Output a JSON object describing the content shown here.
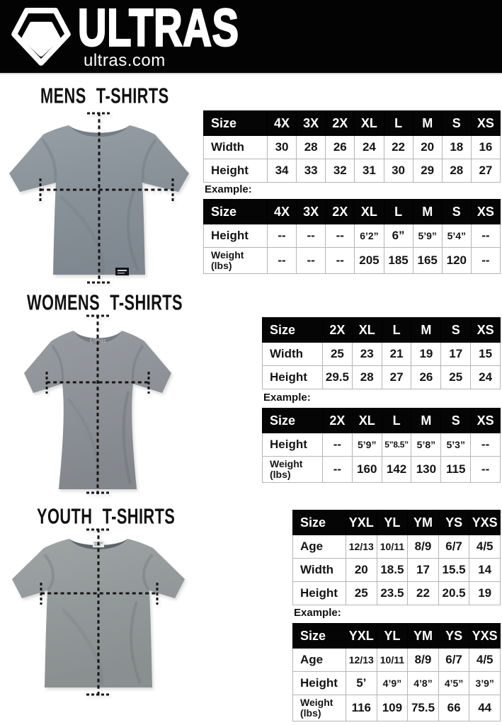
{
  "header": {
    "brand": "ULTRAS",
    "site": "ultras.com"
  },
  "colors": {
    "header_bg": "#030303",
    "table_header_bg": "#050505",
    "table_header_text": "#ffffff",
    "grid_line": "#b5b5b5",
    "shirt_gray_mens": "#8d9598",
    "shirt_gray_womens": "#8e9296",
    "shirt_gray_youth": "#949a9a"
  },
  "icons": {
    "logo": "ultras-pentagon-badge-icon"
  },
  "sections": [
    {
      "id": "mens",
      "title": "MENS T-SHIRTS",
      "example_label": "Example:",
      "size_table": {
        "header": [
          "Size",
          "4X",
          "3X",
          "2X",
          "XL",
          "L",
          "M",
          "S",
          "XS"
        ],
        "rows": [
          {
            "label": "Width",
            "values": [
              "30",
              "28",
              "26",
              "24",
              "22",
              "20",
              "18",
              "16"
            ]
          },
          {
            "label": "Height",
            "values": [
              "34",
              "33",
              "32",
              "31",
              "30",
              "29",
              "28",
              "27"
            ]
          }
        ]
      },
      "example_table": {
        "header": [
          "Size",
          "4X",
          "3X",
          "2X",
          "XL",
          "L",
          "M",
          "S",
          "XS"
        ],
        "rows": [
          {
            "label": "Height",
            "values": [
              "--",
              "--",
              "--",
              "6’2”",
              "6”",
              "5’9”",
              "5’4”",
              "--"
            ]
          },
          {
            "label": "Weight (lbs)",
            "values": [
              "--",
              "--",
              "--",
              "205",
              "185",
              "165",
              "120",
              "--"
            ]
          }
        ]
      }
    },
    {
      "id": "womens",
      "title": "WOMENS T-SHIRTS",
      "example_label": "Example:",
      "size_table": {
        "header": [
          "Size",
          "2X",
          "XL",
          "L",
          "M",
          "S",
          "XS"
        ],
        "rows": [
          {
            "label": "Width",
            "values": [
              "25",
              "23",
              "21",
              "19",
              "17",
              "15"
            ]
          },
          {
            "label": "Height",
            "values": [
              "29.5",
              "28",
              "27",
              "26",
              "25",
              "24"
            ]
          }
        ]
      },
      "example_table": {
        "header": [
          "Size",
          "2X",
          "XL",
          "L",
          "M",
          "S",
          "XS"
        ],
        "rows": [
          {
            "label": "Height",
            "values": [
              "--",
              "5’9”",
              "5”8.5”",
              "5’8”",
              "5’3”",
              "--"
            ]
          },
          {
            "label": "Weight (lbs)",
            "values": [
              "--",
              "160",
              "142",
              "130",
              "115",
              "--"
            ]
          }
        ]
      }
    },
    {
      "id": "youth",
      "title": "YOUTH T-SHIRTS",
      "example_label": "Example:",
      "size_table": {
        "header": [
          "Size",
          "YXL",
          "YL",
          "YM",
          "YS",
          "YXS"
        ],
        "rows": [
          {
            "label": "Age",
            "values": [
              "12/13",
              "10/11",
              "8/9",
              "6/7",
              "4/5"
            ]
          },
          {
            "label": "Width",
            "values": [
              "20",
              "18.5",
              "17",
              "15.5",
              "14"
            ]
          },
          {
            "label": "Height",
            "values": [
              "25",
              "23.5",
              "22",
              "20.5",
              "19"
            ]
          }
        ]
      },
      "example_table": {
        "header": [
          "Size",
          "YXL",
          "YL",
          "YM",
          "YS",
          "YXS"
        ],
        "rows": [
          {
            "label": "Age",
            "values": [
              "12/13",
              "10/11",
              "8/9",
              "6/7",
              "4/5"
            ]
          },
          {
            "label": "Height",
            "values": [
              "5’",
              "4’9”",
              "4’8”",
              "4’5”",
              "3’9”"
            ]
          },
          {
            "label": "Weight (lbs)",
            "values": [
              "116",
              "109",
              "75.5",
              "66",
              "44"
            ]
          }
        ]
      }
    }
  ]
}
